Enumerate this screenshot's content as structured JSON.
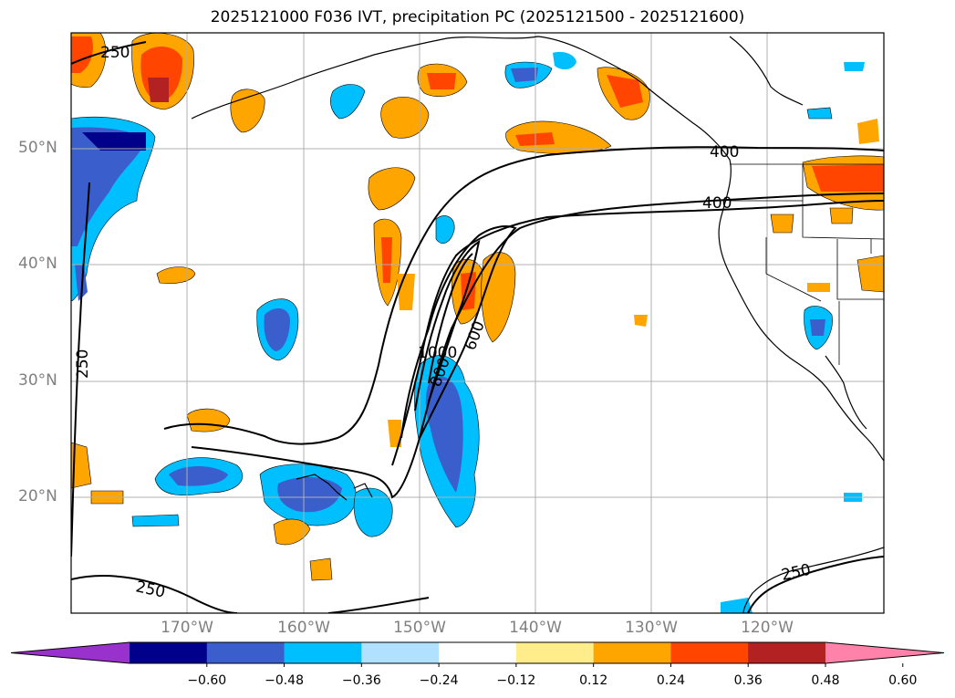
{
  "title": "2025121000 F036 IVT, precipitation PC (2025121500 - 2025121600)",
  "map": {
    "latitude_labels": [
      "50°N",
      "40°N",
      "30°N",
      "20°N"
    ],
    "longitude_labels": [
      "170°W",
      "160°W",
      "150°W",
      "140°W",
      "130°W",
      "120°W"
    ],
    "lat_range": [
      10,
      60
    ],
    "lon_range": [
      -180,
      -110
    ],
    "grid": true,
    "ivt_contour_labels": [
      "250",
      "250",
      "250",
      "250",
      "400",
      "400",
      "600",
      "800",
      "1000"
    ]
  },
  "colorbar": {
    "tick_labels": [
      "−0.60",
      "−0.48",
      "−0.36",
      "−0.24",
      "−0.12",
      "0.12",
      "0.24",
      "0.36",
      "0.48",
      "0.60"
    ],
    "colors": [
      "#9932cc",
      "#00008b",
      "#3a5fcd",
      "#00bfff",
      "#b0e2ff",
      "#ffffff",
      "#ffec8b",
      "#ffa500",
      "#ff4500",
      "#b22222",
      "#ff82ab"
    ]
  },
  "colors": {
    "grid": "#b0b0b0",
    "coast": "#000000",
    "contour": "#000000"
  }
}
